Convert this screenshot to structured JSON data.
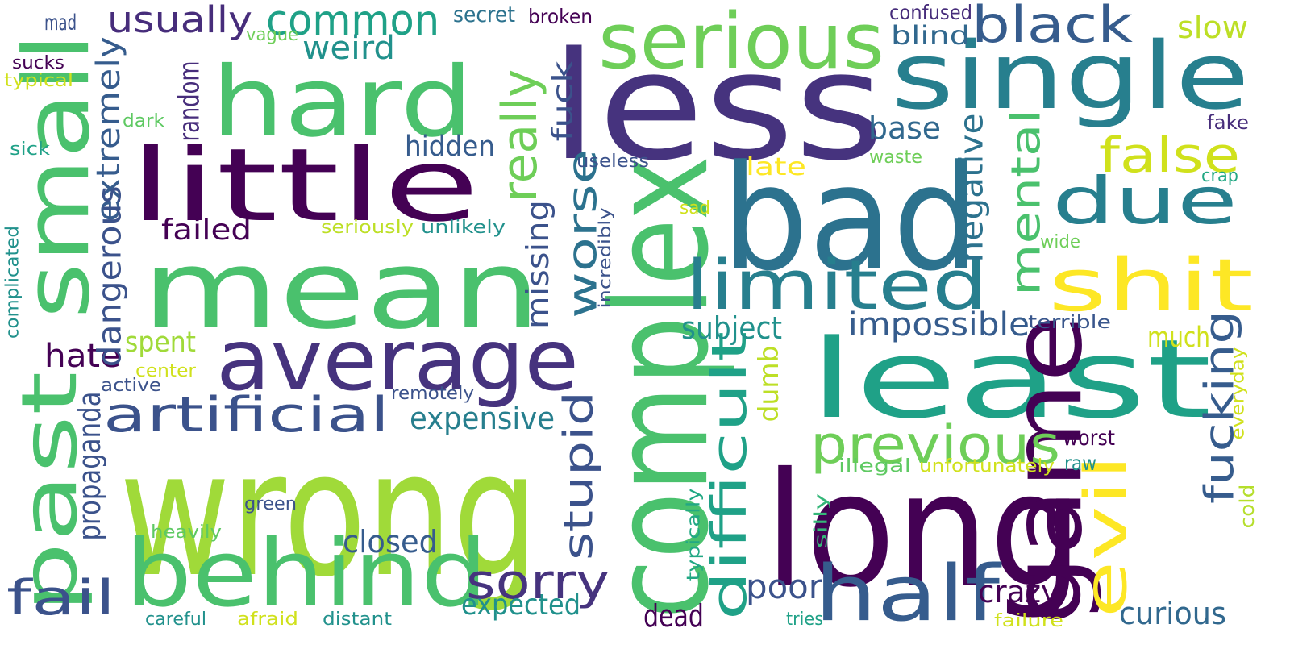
{
  "words": [
    {
      "text": "wrong",
      "color": "#a0da39"
    },
    {
      "text": "mean",
      "color": "#4ac16d"
    },
    {
      "text": "less",
      "color": "#46337e"
    },
    {
      "text": "bad",
      "color": "#2c728e"
    },
    {
      "text": "long",
      "color": "#440154"
    },
    {
      "text": "complex",
      "color": "#4ac16d"
    },
    {
      "text": "least",
      "color": "#1fa187"
    },
    {
      "text": "little",
      "color": "#440154"
    },
    {
      "text": "hard",
      "color": "#4ac16d"
    },
    {
      "text": "single",
      "color": "#277f8e"
    },
    {
      "text": "small",
      "color": "#4ac16d"
    },
    {
      "text": "average",
      "color": "#46337e"
    },
    {
      "text": "behind",
      "color": "#4ac16d"
    },
    {
      "text": "game",
      "color": "#440154"
    },
    {
      "text": "past",
      "color": "#4ac16d"
    },
    {
      "text": "half",
      "color": "#365c8d"
    },
    {
      "text": "serious",
      "color": "#6ece58"
    },
    {
      "text": "shit",
      "color": "#fde725"
    },
    {
      "text": "due",
      "color": "#277f8e"
    },
    {
      "text": "limited",
      "color": "#277f8e"
    },
    {
      "text": "evil",
      "color": "#fde725"
    },
    {
      "text": "artificial",
      "color": "#3b528b"
    },
    {
      "text": "previous",
      "color": "#6ece58"
    },
    {
      "text": "common",
      "color": "#1fa187"
    },
    {
      "text": "difficult",
      "color": "#1fa187"
    },
    {
      "text": "black",
      "color": "#365c8d"
    },
    {
      "text": "really",
      "color": "#6ece58"
    },
    {
      "text": "sorry",
      "color": "#46337e"
    },
    {
      "text": "false",
      "color": "#d0e11c"
    },
    {
      "text": "stupid",
      "color": "#3b528b"
    },
    {
      "text": "mental",
      "color": "#4ac16d"
    },
    {
      "text": "fucking",
      "color": "#365c8d"
    },
    {
      "text": "fail",
      "color": "#3b528b"
    },
    {
      "text": "worse",
      "color": "#2c728e"
    },
    {
      "text": "usually",
      "color": "#472d7b"
    },
    {
      "text": "impossible",
      "color": "#365c8d"
    },
    {
      "text": "extremely",
      "color": "#365c8d"
    },
    {
      "text": "expensive",
      "color": "#277f8e"
    },
    {
      "text": "closed",
      "color": "#365c8d"
    },
    {
      "text": "hate",
      "color": "#440154"
    },
    {
      "text": "weird",
      "color": "#21918c"
    },
    {
      "text": "fuck",
      "color": "#3b528b"
    },
    {
      "text": "dangerous",
      "color": "#3b528b"
    },
    {
      "text": "expected",
      "color": "#21918c"
    },
    {
      "text": "poor",
      "color": "#3b528b"
    },
    {
      "text": "crazy",
      "color": "#440154"
    },
    {
      "text": "curious",
      "color": "#31688e"
    },
    {
      "text": "negative",
      "color": "#2c728e"
    },
    {
      "text": "missing",
      "color": "#3b528b"
    },
    {
      "text": "propaganda",
      "color": "#3b528b"
    },
    {
      "text": "base",
      "color": "#31688e"
    },
    {
      "text": "random",
      "color": "#472d7b"
    },
    {
      "text": "subject",
      "color": "#21918c"
    },
    {
      "text": "failed",
      "color": "#440154"
    },
    {
      "text": "hidden",
      "color": "#365c8d"
    },
    {
      "text": "blind",
      "color": "#31688e"
    },
    {
      "text": "slow",
      "color": "#bddf26"
    },
    {
      "text": "much",
      "color": "#d0e11c"
    },
    {
      "text": "spent",
      "color": "#a0da39"
    },
    {
      "text": "dead",
      "color": "#440154"
    },
    {
      "text": "dumb",
      "color": "#bddf26"
    },
    {
      "text": "late",
      "color": "#fde725"
    },
    {
      "text": "worst",
      "color": "#440154"
    },
    {
      "text": "everyday",
      "color": "#d0e11c"
    },
    {
      "text": "terrible",
      "color": "#39568c"
    },
    {
      "text": "unfortunately",
      "color": "#d0e11c"
    },
    {
      "text": "illegal",
      "color": "#5ec962"
    },
    {
      "text": "raw",
      "color": "#21918c"
    },
    {
      "text": "cold",
      "color": "#b5de2b"
    },
    {
      "text": "fake",
      "color": "#472d7b"
    },
    {
      "text": "crap",
      "color": "#22a884"
    },
    {
      "text": "wide",
      "color": "#6ece58"
    },
    {
      "text": "confused",
      "color": "#472d7b"
    },
    {
      "text": "broken",
      "color": "#440154"
    },
    {
      "text": "secret",
      "color": "#2c728e"
    },
    {
      "text": "vague",
      "color": "#6ece58"
    },
    {
      "text": "mad",
      "color": "#3b528b"
    },
    {
      "text": "sucks",
      "color": "#440154"
    },
    {
      "text": "typical",
      "color": "#d0e11c"
    },
    {
      "text": "dark",
      "color": "#5ec962"
    },
    {
      "text": "sick",
      "color": "#1fa187"
    },
    {
      "text": "complicated",
      "color": "#21918c"
    },
    {
      "text": "active",
      "color": "#3b528b"
    },
    {
      "text": "center",
      "color": "#d0e11c"
    },
    {
      "text": "remotely",
      "color": "#3b528b"
    },
    {
      "text": "seriously",
      "color": "#bddf26"
    },
    {
      "text": "unlikely",
      "color": "#21918c"
    },
    {
      "text": "incredibly",
      "color": "#3b528b"
    },
    {
      "text": "useless",
      "color": "#3b528b"
    },
    {
      "text": "waste",
      "color": "#6ece58"
    },
    {
      "text": "sad",
      "color": "#d0e11c"
    },
    {
      "text": "green",
      "color": "#3b528b"
    },
    {
      "text": "heavily",
      "color": "#5ec962"
    },
    {
      "text": "careful",
      "color": "#21918c"
    },
    {
      "text": "afraid",
      "color": "#d0e11c"
    },
    {
      "text": "distant",
      "color": "#21918c"
    },
    {
      "text": "tries",
      "color": "#1fa187"
    },
    {
      "text": "failure",
      "color": "#d0e11c"
    },
    {
      "text": "silly",
      "color": "#35b779"
    },
    {
      "text": "typically",
      "color": "#22a884"
    }
  ]
}
